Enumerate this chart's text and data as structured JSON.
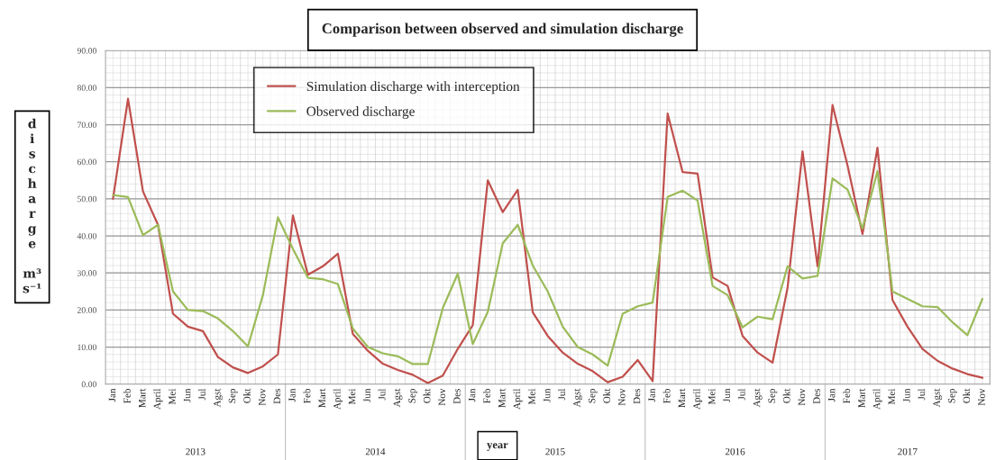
{
  "chart_data": {
    "type": "line",
    "title": "Comparison between observed and simulation discharge",
    "xlabel": "year",
    "ylabel": "discharge m³ s⁻¹",
    "categories": [
      "Jan",
      "Feb",
      "Mart",
      "April",
      "Mei",
      "Jun",
      "Jul",
      "Agst",
      "Sep",
      "Okt",
      "Nov",
      "Des",
      "Jan",
      "Feb",
      "Mart",
      "April",
      "Mei",
      "Jun",
      "Jul",
      "Agst",
      "Sep",
      "Okt",
      "Nov",
      "Des",
      "Jan",
      "Feb",
      "Mart",
      "April",
      "Mei",
      "Jun",
      "Jul",
      "Agst",
      "Sep",
      "Okt",
      "Nov",
      "Des",
      "Jan",
      "Feb",
      "Mart",
      "April",
      "Mei",
      "Jun",
      "Jul",
      "Agst",
      "Sep",
      "Okt",
      "Nov",
      "Des",
      "Jan",
      "Feb",
      "Mart",
      "April",
      "Mei",
      "Jun",
      "Jul",
      "Agst",
      "Sep",
      "Okt",
      "Nov"
    ],
    "series": [
      {
        "name": "Simulation discharge with interception",
        "color": "#c0504d",
        "values": [
          50,
          77,
          52,
          43,
          19,
          15.5,
          14.3,
          7.3,
          4.5,
          3,
          4.8,
          8,
          45.5,
          29.5,
          31.8,
          35.2,
          13.5,
          9,
          5.5,
          3.8,
          2.5,
          0.3,
          2.3,
          9.5,
          15.9,
          55,
          46.4,
          52.4,
          19.4,
          13,
          8.5,
          5.5,
          3.5,
          0.5,
          2,
          6.5,
          0.8,
          73,
          57.2,
          56.8,
          28.8,
          26.5,
          13,
          8.5,
          5.8,
          26,
          62.8,
          31.8,
          75.3,
          59,
          40.5,
          63.8,
          22.7,
          15.5,
          9.5,
          6.3,
          4.2,
          2.7,
          1.7
        ]
      },
      {
        "name": "Observed discharge",
        "color": "#9bbb59",
        "values": [
          51,
          50.5,
          40.2,
          43,
          25,
          20,
          19.7,
          17.7,
          14.3,
          10.2,
          24,
          45,
          36.5,
          28.7,
          28.3,
          27,
          15,
          10,
          8.3,
          7.5,
          5.4,
          5.4,
          20.5,
          29.8,
          10.8,
          19.5,
          38,
          43,
          32,
          25,
          15.5,
          10,
          8,
          5,
          19,
          21,
          22,
          50.5,
          52.2,
          49.5,
          26.5,
          24,
          15.3,
          18.2,
          17.5,
          31.8,
          28.5,
          29.2,
          55.5,
          52.5,
          42,
          57.5,
          25,
          23,
          21,
          20.8,
          16.7,
          13.2,
          23
        ]
      }
    ],
    "ylim": [
      0,
      90
    ],
    "yticks": [
      {
        "value": 0,
        "label": "0.00"
      },
      {
        "value": 10,
        "label": "10.00"
      },
      {
        "value": 20,
        "label": "20.00"
      },
      {
        "value": 30,
        "label": "30.00"
      },
      {
        "value": 40,
        "label": "40.00"
      },
      {
        "value": 50,
        "label": "50.00"
      },
      {
        "value": 60,
        "label": "60.00"
      },
      {
        "value": 70,
        "label": "70.00"
      },
      {
        "value": 80,
        "label": "80.00"
      },
      {
        "value": 90,
        "label": "90.00"
      }
    ],
    "annotations": [
      "2013",
      "2014",
      "2015",
      "2016",
      "2017"
    ],
    "grid": true,
    "legend": "top left",
    "marker": "none",
    "line_style": "solid"
  }
}
